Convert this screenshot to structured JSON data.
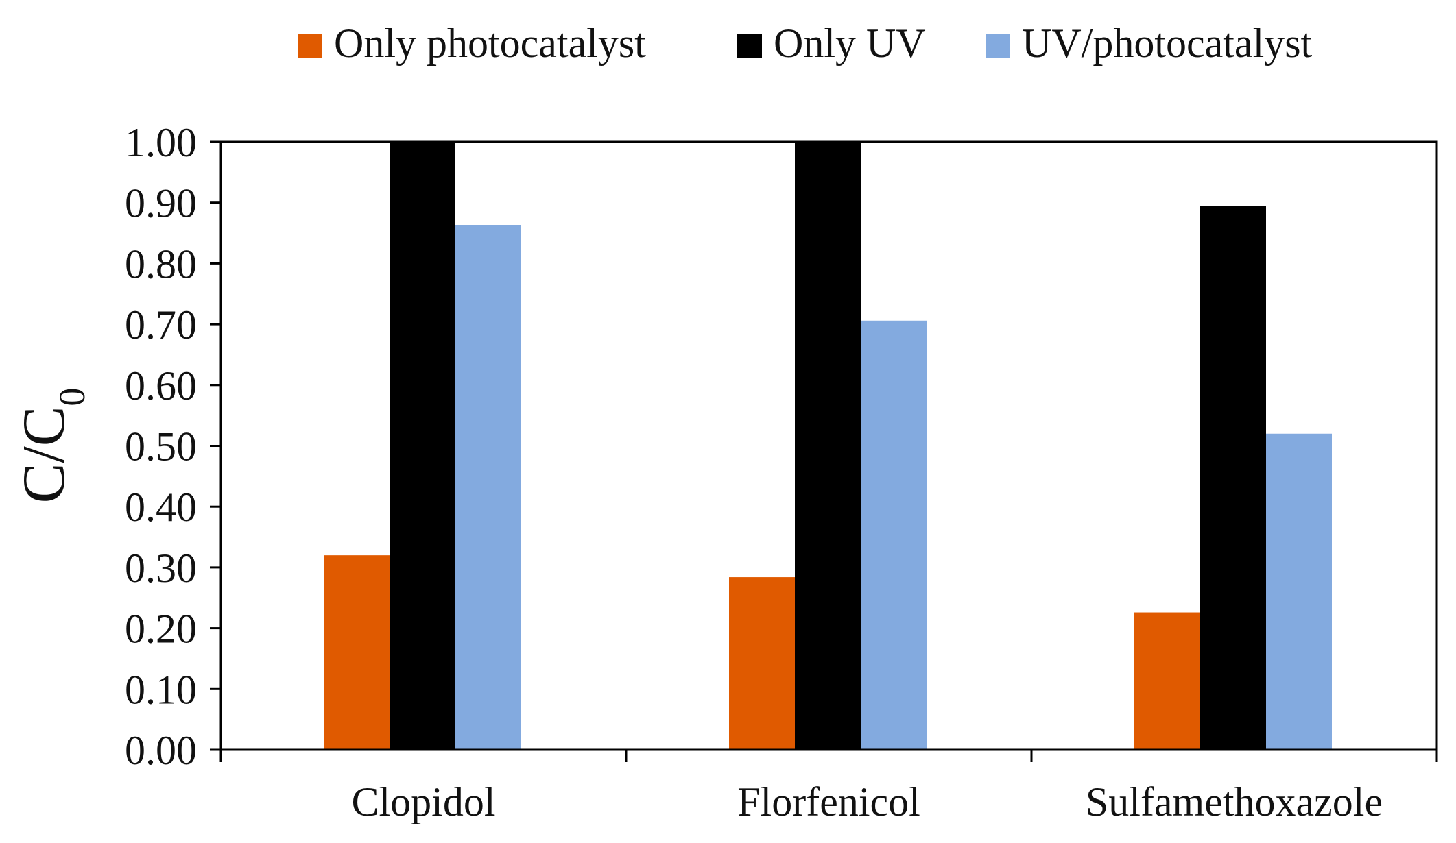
{
  "chart_data": {
    "type": "bar",
    "title": "",
    "xlabel": "",
    "ylabel": "C/C",
    "ylabel_subscript": "0",
    "categories": [
      "Clopidol",
      "Florfenicol",
      "Sulfamethoxazole"
    ],
    "series": [
      {
        "name": "Only photocatalyst",
        "color": "#E05A00",
        "values": [
          0.32,
          0.284,
          0.226
        ]
      },
      {
        "name": "Only UV",
        "color": "#000000",
        "values": [
          1.0,
          1.0,
          0.895
        ]
      },
      {
        "name": "UV/photocatalyst",
        "color": "#83AADF",
        "values": [
          0.863,
          0.706,
          0.52
        ]
      }
    ],
    "ylim": [
      0,
      1
    ],
    "y_ticks": [
      0.0,
      0.1,
      0.2,
      0.3,
      0.4,
      0.5,
      0.6,
      0.7,
      0.8,
      0.9,
      1.0
    ],
    "y_tick_labels": [
      "0.00",
      "0.10",
      "0.20",
      "0.30",
      "0.40",
      "0.50",
      "0.60",
      "0.70",
      "0.80",
      "0.90",
      "1.00"
    ],
    "grid": false,
    "legend_position": "top-center",
    "axis_color": "#000000",
    "background_color": "#ffffff"
  }
}
